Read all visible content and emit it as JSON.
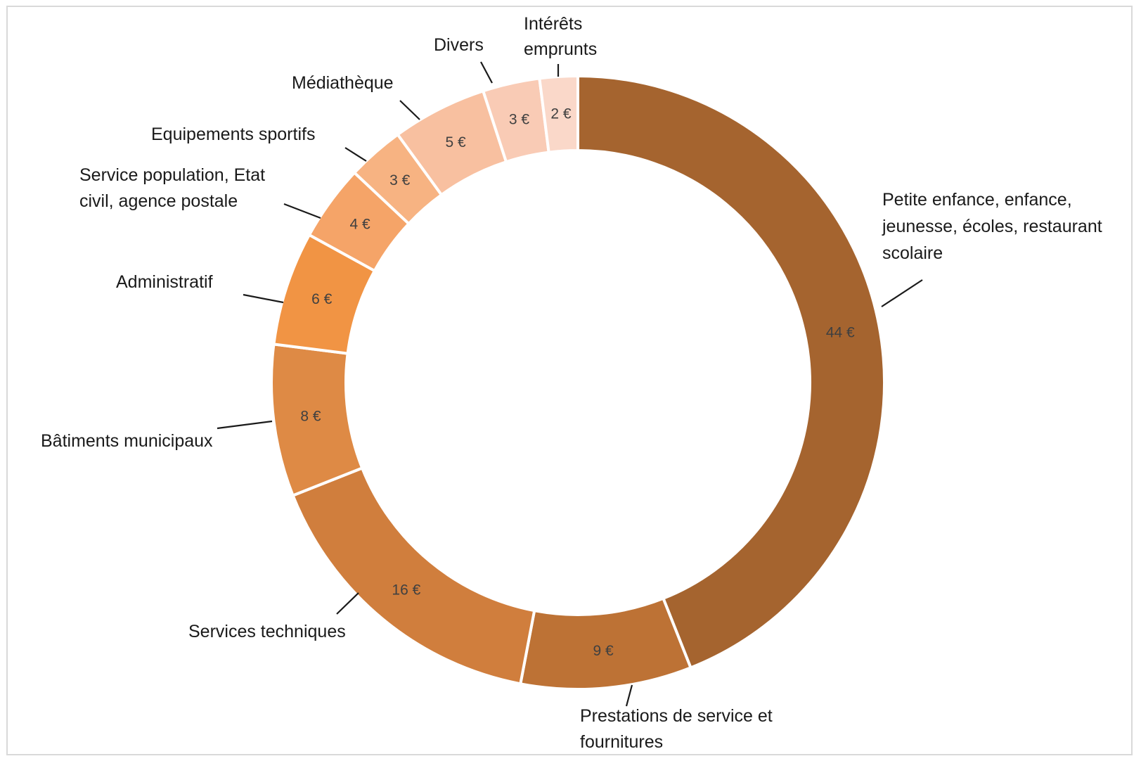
{
  "chart_data": {
    "type": "pie",
    "variant": "donut",
    "title": "",
    "legend": "none",
    "categories": [
      "Petite enfance, enfance, jeunesse, écoles, restaurant scolaire",
      "Prestations de service et fournitures",
      "Services techniques",
      "Bâtiments municipaux",
      "Administratif",
      "Service population, Etat civil, agence postale",
      "Equipements sportifs",
      "Médiathèque",
      "Divers",
      "Intérêts emprunts"
    ],
    "values": [
      44,
      9,
      16,
      8,
      6,
      4,
      3,
      5,
      3,
      2
    ],
    "value_labels": [
      "44 €",
      "9 €",
      "16 €",
      "8 €",
      "6 €",
      "4 €",
      "3 €",
      "5 €",
      "3 €",
      "2 €"
    ],
    "colors": [
      "#a5642f",
      "#bd7235",
      "#d07e3d",
      "#de8a45",
      "#f19444",
      "#f5a468",
      "#f7b382",
      "#f8c0a0",
      "#f9cbb5",
      "#fad8c9"
    ],
    "label_lines": [
      [
        "Petite enfance, enfance,",
        "jeunesse, écoles, restaurant",
        "scolaire"
      ],
      [
        "Prestations de service et",
        "fournitures"
      ],
      [
        "Services techniques"
      ],
      [
        "Bâtiments municipaux"
      ],
      [
        "Administratif"
      ],
      [
        "Service population, Etat",
        "civil, agence postale"
      ],
      [
        "Equipements sportifs"
      ],
      [
        "Médiathèque"
      ],
      [
        "Divers"
      ],
      [
        "Intérêts",
        "emprunts"
      ]
    ]
  }
}
